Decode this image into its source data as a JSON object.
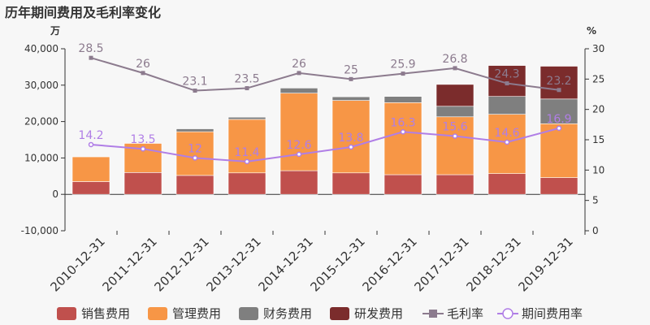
{
  "title": "历年期间费用及毛利率变化",
  "chart_data": {
    "type": "bar",
    "stacked": true,
    "categories": [
      "2010-12-31",
      "2011-12-31",
      "2012-12-31",
      "2013-12-31",
      "2014-12-31",
      "2015-12-31",
      "2016-12-31",
      "2017-12-31",
      "2018-12-31",
      "2019-12-31"
    ],
    "y_left": {
      "unit": "万",
      "ticks": [
        "40,000",
        "30,000",
        "20,000",
        "10,000",
        "0",
        "-10,000"
      ],
      "range": [
        -10000,
        40000
      ]
    },
    "y_right": {
      "unit": "%",
      "ticks": [
        "30",
        "25",
        "20",
        "15",
        "10",
        "5",
        "0"
      ],
      "range": [
        0,
        30
      ]
    },
    "series": [
      {
        "name": "销售费用",
        "kind": "bar",
        "color": "#c0504d",
        "values": [
          3500,
          6000,
          5200,
          5900,
          6500,
          5900,
          5400,
          5400,
          5700,
          4600
        ]
      },
      {
        "name": "管理费用",
        "kind": "bar",
        "color": "#f79646",
        "values": [
          6800,
          8000,
          12000,
          14700,
          21300,
          19900,
          19800,
          15900,
          16300,
          14800
        ]
      },
      {
        "name": "财务费用",
        "kind": "bar",
        "color": "#7f7f7f",
        "values": [
          0,
          0,
          800,
          600,
          1400,
          1000,
          1700,
          2900,
          4900,
          6800
        ]
      },
      {
        "name": "研发费用",
        "kind": "bar",
        "color": "#7b2c2c",
        "values": [
          0,
          0,
          0,
          0,
          0,
          0,
          0,
          6000,
          8500,
          9000
        ]
      },
      {
        "name": "毛利率",
        "kind": "line",
        "axis": "right",
        "color": "#8c7b8e",
        "marker": "square",
        "values": [
          28.5,
          26,
          23.1,
          23.5,
          26,
          25,
          25.9,
          26.8,
          24.3,
          23.2
        ],
        "labels": [
          "28.5",
          "26",
          "23.1",
          "23.5",
          "26",
          "25",
          "25.9",
          "26.8",
          "24.3",
          "23.2"
        ]
      },
      {
        "name": "期间费用率",
        "kind": "line",
        "axis": "right",
        "color": "#b07ee6",
        "marker": "circle",
        "values": [
          14.2,
          13.5,
          12,
          11.4,
          12.6,
          13.8,
          16.3,
          15.6,
          14.6,
          16.9
        ],
        "labels": [
          "14.2",
          "13.5",
          "12",
          "11.4",
          "12.6",
          "13.8",
          "16.3",
          "15.6",
          "14.6",
          "16.9"
        ]
      }
    ],
    "legend": "bottom",
    "grid": false
  }
}
